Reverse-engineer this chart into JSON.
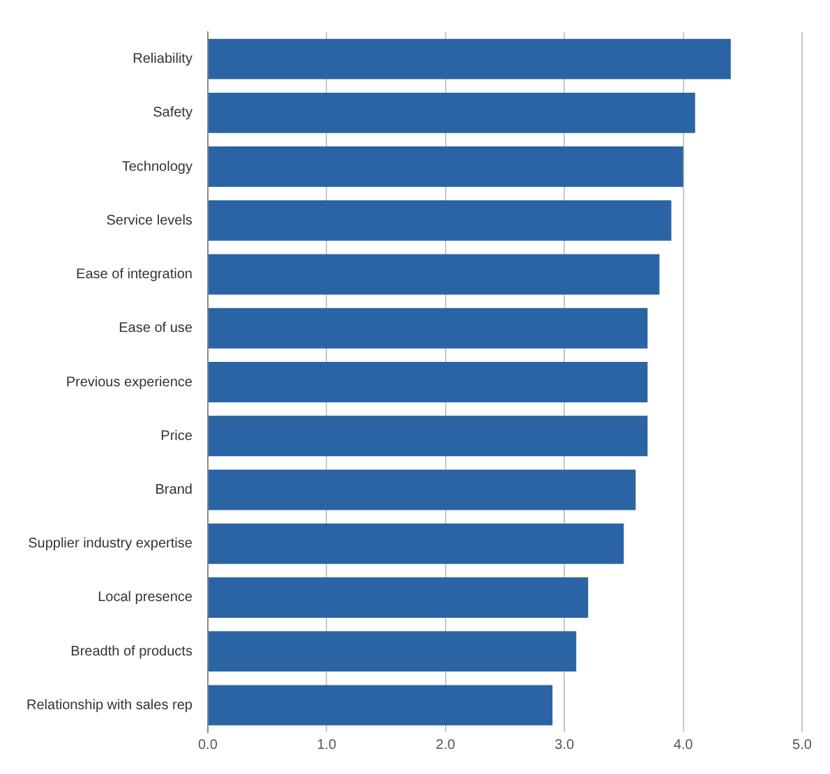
{
  "chart_data": {
    "type": "bar",
    "orientation": "horizontal",
    "categories": [
      "Reliability",
      "Safety",
      "Technology",
      "Service levels",
      "Ease of integration",
      "Ease of use",
      "Previous experience",
      "Price",
      "Brand",
      "Supplier industry expertise",
      "Local presence",
      "Breadth of products",
      "Relationship with sales rep"
    ],
    "values": [
      4.4,
      4.1,
      4.0,
      3.9,
      3.8,
      3.7,
      3.7,
      3.7,
      3.6,
      3.5,
      3.2,
      3.1,
      2.9
    ],
    "color": "#2a64a4",
    "xlim": [
      0,
      5
    ],
    "xticks": [
      {
        "value": 0,
        "label": "0.0"
      },
      {
        "value": 1,
        "label": "1.0"
      },
      {
        "value": 2,
        "label": "2.0"
      },
      {
        "value": 3,
        "label": "3.0"
      },
      {
        "value": 4,
        "label": "4.0"
      },
      {
        "value": 5,
        "label": "5.0"
      }
    ],
    "grid": "x",
    "legend": false
  }
}
